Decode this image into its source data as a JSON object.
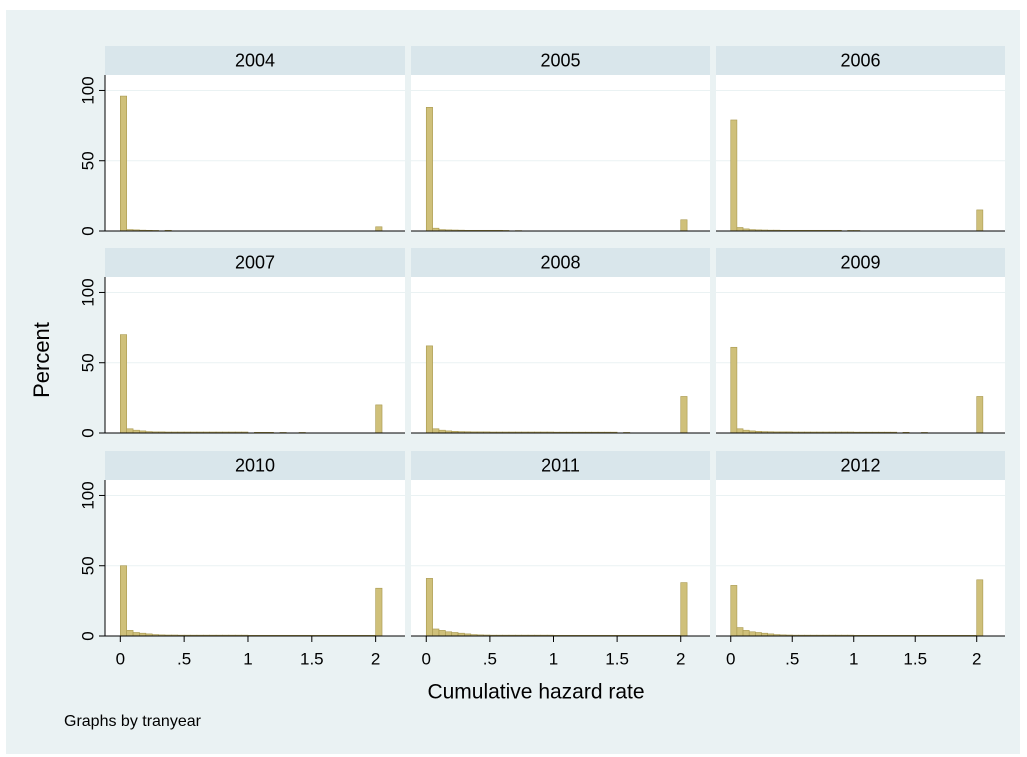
{
  "y_label": "Percent",
  "x_label": "Cumulative hazard rate",
  "note": "Graphs by tranyear",
  "chart_data": [
    {
      "type": "histogram",
      "title": "2004",
      "bins": [
        0,
        0.05,
        0.1,
        0.15,
        0.2,
        0.25,
        0.3,
        0.35,
        0.4,
        0.45,
        0.5,
        0.55,
        0.6,
        0.65,
        0.7,
        0.75,
        0.8,
        0.85,
        0.9,
        0.95,
        1,
        1.05,
        1.1,
        1.15,
        1.2,
        1.25,
        1.3,
        1.35,
        1.4,
        1.45,
        1.5,
        1.55,
        1.6,
        1.65,
        1.7,
        1.75,
        1.8,
        1.85,
        1.9,
        1.95,
        2,
        2.05
      ],
      "values": [
        96,
        1,
        0.8,
        0.6,
        0.5,
        0.4,
        0,
        0.5,
        0,
        0,
        0,
        0,
        0,
        0,
        0,
        0,
        0,
        0,
        0,
        0,
        0,
        0,
        0,
        0,
        0,
        0,
        0,
        0,
        0,
        0,
        0,
        0,
        0,
        0,
        0,
        0,
        0,
        0,
        0,
        0,
        3
      ],
      "xlim": [
        -0.12,
        2.23
      ],
      "ylim": [
        0,
        111
      ],
      "yticks": [
        0,
        50,
        100
      ],
      "grid": true,
      "color": "#cfc07a"
    },
    {
      "type": "histogram",
      "title": "2005",
      "bins": [
        0,
        0.05,
        0.1,
        0.15,
        0.2,
        0.25,
        0.3,
        0.35,
        0.4,
        0.45,
        0.5,
        0.55,
        0.6,
        0.65,
        0.7,
        0.75,
        0.8,
        0.85,
        0.9,
        0.95,
        1,
        1.05,
        1.1,
        1.15,
        1.2,
        1.25,
        1.3,
        1.35,
        1.4,
        1.45,
        1.5,
        1.55,
        1.6,
        1.65,
        1.7,
        1.75,
        1.8,
        1.85,
        1.9,
        1.95,
        2,
        2.05
      ],
      "values": [
        88,
        2,
        1,
        0.8,
        0.7,
        0.6,
        0.5,
        0.5,
        0.5,
        0.5,
        0.5,
        0.5,
        0.4,
        0,
        0.3,
        0,
        0,
        0,
        0,
        0,
        0,
        0,
        0,
        0,
        0,
        0,
        0,
        0,
        0,
        0,
        0,
        0,
        0,
        0,
        0,
        0,
        0,
        0,
        0,
        0,
        8
      ],
      "xlim": [
        -0.12,
        2.23
      ],
      "ylim": [
        0,
        111
      ],
      "yticks": [
        0,
        50,
        100
      ],
      "grid": true,
      "color": "#cfc07a"
    },
    {
      "type": "histogram",
      "title": "2006",
      "bins": [
        0,
        0.05,
        0.1,
        0.15,
        0.2,
        0.25,
        0.3,
        0.35,
        0.4,
        0.45,
        0.5,
        0.55,
        0.6,
        0.65,
        0.7,
        0.75,
        0.8,
        0.85,
        0.9,
        0.95,
        1,
        1.05,
        1.1,
        1.15,
        1.2,
        1.25,
        1.3,
        1.35,
        1.4,
        1.45,
        1.5,
        1.55,
        1.6,
        1.65,
        1.7,
        1.75,
        1.8,
        1.85,
        1.9,
        1.95,
        2,
        2.05
      ],
      "values": [
        79,
        2.5,
        1.5,
        1,
        0.8,
        0.7,
        0.6,
        0.6,
        0.5,
        0.5,
        0.5,
        0.5,
        0.5,
        0.5,
        0.5,
        0.5,
        0.5,
        0.5,
        0,
        0.4,
        0.4,
        0,
        0,
        0,
        0,
        0,
        0,
        0,
        0,
        0,
        0,
        0,
        0,
        0,
        0,
        0,
        0,
        0,
        0,
        0,
        15
      ],
      "xlim": [
        -0.12,
        2.23
      ],
      "ylim": [
        0,
        111
      ],
      "yticks": [
        0,
        50,
        100
      ],
      "grid": true,
      "color": "#cfc07a"
    },
    {
      "type": "histogram",
      "title": "2007",
      "bins": [
        0,
        0.05,
        0.1,
        0.15,
        0.2,
        0.25,
        0.3,
        0.35,
        0.4,
        0.45,
        0.5,
        0.55,
        0.6,
        0.65,
        0.7,
        0.75,
        0.8,
        0.85,
        0.9,
        0.95,
        1,
        1.05,
        1.1,
        1.15,
        1.2,
        1.25,
        1.3,
        1.35,
        1.4,
        1.45,
        1.5,
        1.55,
        1.6,
        1.65,
        1.7,
        1.75,
        1.8,
        1.85,
        1.9,
        1.95,
        2,
        2.05
      ],
      "values": [
        70,
        3,
        2,
        1.5,
        1,
        0.8,
        0.8,
        0.7,
        0.7,
        0.7,
        0.7,
        0.7,
        0.7,
        0.7,
        0.7,
        0.7,
        0.7,
        0.7,
        0.7,
        0.7,
        0,
        0.5,
        0.5,
        0.5,
        0,
        0.4,
        0,
        0,
        0.4,
        0,
        0,
        0,
        0,
        0,
        0,
        0,
        0,
        0,
        0,
        0,
        20
      ],
      "xlim": [
        -0.12,
        2.23
      ],
      "ylim": [
        0,
        111
      ],
      "yticks": [
        0,
        50,
        100
      ],
      "grid": true,
      "color": "#cfc07a"
    },
    {
      "type": "histogram",
      "title": "2008",
      "bins": [
        0,
        0.05,
        0.1,
        0.15,
        0.2,
        0.25,
        0.3,
        0.35,
        0.4,
        0.45,
        0.5,
        0.55,
        0.6,
        0.65,
        0.7,
        0.75,
        0.8,
        0.85,
        0.9,
        0.95,
        1,
        1.05,
        1.1,
        1.15,
        1.2,
        1.25,
        1.3,
        1.35,
        1.4,
        1.45,
        1.5,
        1.55,
        1.6,
        1.65,
        1.7,
        1.75,
        1.8,
        1.85,
        1.9,
        1.95,
        2,
        2.05
      ],
      "values": [
        62,
        3,
        2,
        1.5,
        1.2,
        1,
        0.9,
        0.8,
        0.8,
        0.8,
        0.7,
        0.7,
        0.7,
        0.7,
        0.7,
        0.7,
        0.7,
        0.7,
        0.7,
        0.7,
        0.6,
        0.6,
        0.6,
        0.6,
        0.6,
        0.6,
        0.6,
        0.6,
        0.6,
        0.6,
        0,
        0.4,
        0,
        0,
        0,
        0,
        0,
        0,
        0,
        0,
        26
      ],
      "xlim": [
        -0.12,
        2.23
      ],
      "ylim": [
        0,
        111
      ],
      "yticks": [
        0,
        50,
        100
      ],
      "grid": true,
      "color": "#cfc07a"
    },
    {
      "type": "histogram",
      "title": "2009",
      "bins": [
        0,
        0.05,
        0.1,
        0.15,
        0.2,
        0.25,
        0.3,
        0.35,
        0.4,
        0.45,
        0.5,
        0.55,
        0.6,
        0.65,
        0.7,
        0.75,
        0.8,
        0.85,
        0.9,
        0.95,
        1,
        1.05,
        1.1,
        1.15,
        1.2,
        1.25,
        1.3,
        1.35,
        1.4,
        1.45,
        1.5,
        1.55,
        1.6,
        1.65,
        1.7,
        1.75,
        1.8,
        1.85,
        1.9,
        1.95,
        2,
        2.05
      ],
      "values": [
        61,
        3,
        2,
        1.5,
        1.2,
        1,
        0.9,
        0.8,
        0.8,
        0.8,
        0.7,
        0.7,
        0.7,
        0.7,
        0.7,
        0.7,
        0.7,
        0.7,
        0.7,
        0.7,
        0.6,
        0.6,
        0.6,
        0.6,
        0.6,
        0.6,
        0.6,
        0,
        0.5,
        0,
        0,
        0.4,
        0,
        0,
        0,
        0,
        0,
        0,
        0,
        0,
        26
      ],
      "xlim": [
        -0.12,
        2.23
      ],
      "ylim": [
        0,
        111
      ],
      "yticks": [
        0,
        50,
        100
      ],
      "grid": true,
      "color": "#cfc07a"
    },
    {
      "type": "histogram",
      "title": "2010",
      "bins": [
        0,
        0.05,
        0.1,
        0.15,
        0.2,
        0.25,
        0.3,
        0.35,
        0.4,
        0.45,
        0.5,
        0.55,
        0.6,
        0.65,
        0.7,
        0.75,
        0.8,
        0.85,
        0.9,
        0.95,
        1,
        1.05,
        1.1,
        1.15,
        1.2,
        1.25,
        1.3,
        1.35,
        1.4,
        1.45,
        1.5,
        1.55,
        1.6,
        1.65,
        1.7,
        1.75,
        1.8,
        1.85,
        1.9,
        1.95,
        2,
        2.05
      ],
      "values": [
        50,
        4,
        2.5,
        2,
        1.5,
        1,
        0.8,
        0.7,
        0.7,
        0.6,
        0.6,
        0.6,
        0.6,
        0.6,
        0.6,
        0.6,
        0.6,
        0.6,
        0.6,
        0.6,
        0.5,
        0.5,
        0.5,
        0.5,
        0.5,
        0.5,
        0.5,
        0.5,
        0.5,
        0.5,
        0.5,
        0.5,
        0.5,
        0.5,
        0.5,
        0.5,
        0.5,
        0.5,
        0.5,
        0.5,
        34
      ],
      "xlim": [
        -0.12,
        2.23
      ],
      "ylim": [
        0,
        111
      ],
      "yticks": [
        0,
        50,
        100
      ],
      "xticks": [
        0,
        {
          "value": 0.5,
          "label": ".5"
        },
        1,
        1.5,
        2
      ],
      "grid": true,
      "color": "#cfc07a"
    },
    {
      "type": "histogram",
      "title": "2011",
      "bins": [
        0,
        0.05,
        0.1,
        0.15,
        0.2,
        0.25,
        0.3,
        0.35,
        0.4,
        0.45,
        0.5,
        0.55,
        0.6,
        0.65,
        0.7,
        0.75,
        0.8,
        0.85,
        0.9,
        0.95,
        1,
        1.05,
        1.1,
        1.15,
        1.2,
        1.25,
        1.3,
        1.35,
        1.4,
        1.45,
        1.5,
        1.55,
        1.6,
        1.65,
        1.7,
        1.75,
        1.8,
        1.85,
        1.9,
        1.95,
        2,
        2.05
      ],
      "values": [
        41,
        5,
        4,
        3,
        2.5,
        2,
        1.5,
        1,
        0.8,
        0.7,
        0.6,
        0.6,
        0.6,
        0.6,
        0.6,
        0.6,
        0.6,
        0.6,
        0.6,
        0.6,
        0.5,
        0.5,
        0.5,
        0.5,
        0.5,
        0.5,
        0.5,
        0.5,
        0.5,
        0.5,
        0.5,
        0.5,
        0.5,
        0.5,
        0.5,
        0.5,
        0.5,
        0.5,
        0.5,
        0.5,
        38
      ],
      "xlim": [
        -0.12,
        2.23
      ],
      "ylim": [
        0,
        111
      ],
      "yticks": [
        0,
        50,
        100
      ],
      "xticks": [
        0,
        {
          "value": 0.5,
          "label": ".5"
        },
        1,
        1.5,
        2
      ],
      "grid": true,
      "color": "#cfc07a"
    },
    {
      "type": "histogram",
      "title": "2012",
      "bins": [
        0,
        0.05,
        0.1,
        0.15,
        0.2,
        0.25,
        0.3,
        0.35,
        0.4,
        0.45,
        0.5,
        0.55,
        0.6,
        0.65,
        0.7,
        0.75,
        0.8,
        0.85,
        0.9,
        0.95,
        1,
        1.05,
        1.1,
        1.15,
        1.2,
        1.25,
        1.3,
        1.35,
        1.4,
        1.45,
        1.5,
        1.55,
        1.6,
        1.65,
        1.7,
        1.75,
        1.8,
        1.85,
        1.9,
        1.95,
        2,
        2.05
      ],
      "values": [
        36,
        6,
        4,
        3,
        2.5,
        2,
        1.5,
        1,
        0.8,
        0.7,
        0.6,
        0.6,
        0.6,
        0.6,
        0.6,
        0.6,
        0.6,
        0.6,
        0.6,
        0.6,
        0.5,
        0.5,
        0.5,
        0.5,
        0.5,
        0.5,
        0.5,
        0.5,
        0.5,
        0.5,
        0.5,
        0.5,
        0.5,
        0.5,
        0.5,
        0.5,
        0.5,
        0.5,
        0.5,
        0.5,
        40
      ],
      "xlim": [
        -0.12,
        2.23
      ],
      "ylim": [
        0,
        111
      ],
      "yticks": [
        0,
        50,
        100
      ],
      "xticks": [
        0,
        {
          "value": 0.5,
          "label": ".5"
        },
        1,
        1.5,
        2
      ],
      "grid": true,
      "color": "#cfc07a"
    }
  ]
}
